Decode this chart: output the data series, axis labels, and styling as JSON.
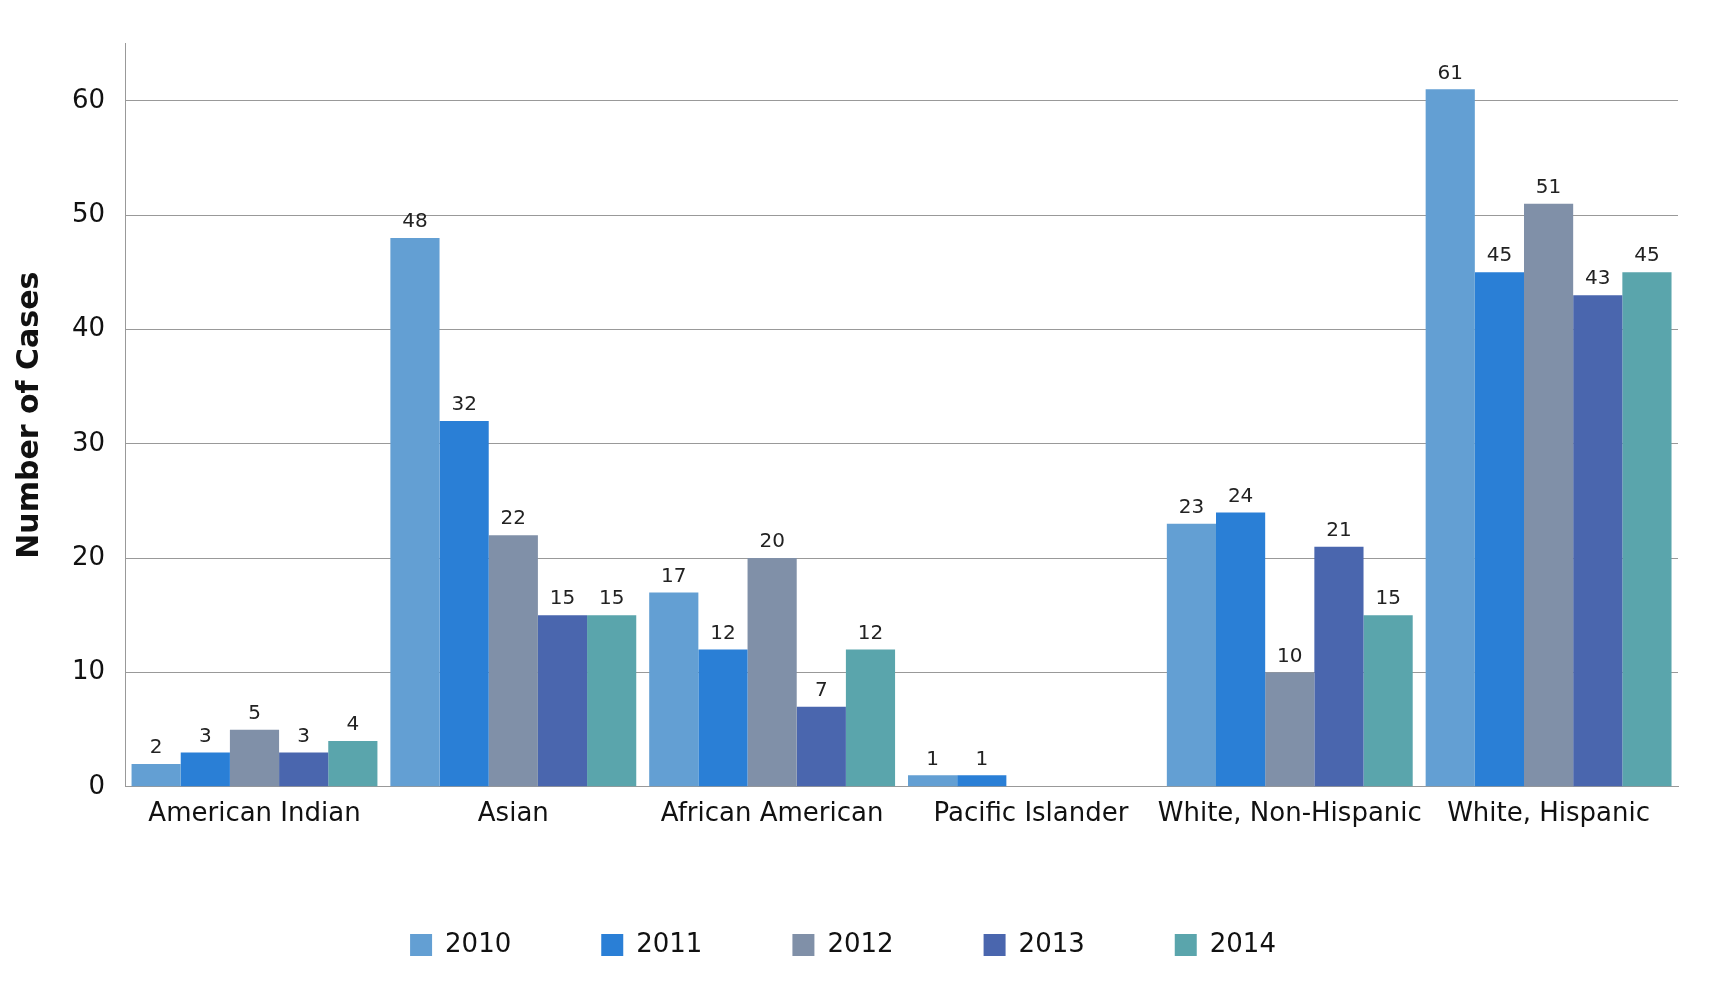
{
  "chart_data": {
    "type": "bar",
    "ylabel": "Number of Cases",
    "categories": [
      "American Indian",
      "Asian",
      "African American",
      "Pacific Islander",
      "White, Non-Hispanic",
      "White, Hispanic"
    ],
    "series": [
      {
        "name": "2010",
        "color": "#639fd3",
        "values": [
          2,
          48,
          17,
          1,
          23,
          61
        ],
        "value_labels": [
          "2",
          "48",
          "17",
          "1",
          "23",
          "61"
        ]
      },
      {
        "name": "2011",
        "color": "#2a7fd6",
        "values": [
          3,
          32,
          12,
          1,
          24,
          45
        ],
        "value_labels": [
          "3",
          "32",
          "12",
          "1",
          "24",
          "45"
        ]
      },
      {
        "name": "2012",
        "color": "#8090a8",
        "values": [
          5,
          22,
          20,
          0,
          10,
          51
        ],
        "value_labels": [
          "5",
          "22",
          "20",
          null,
          "10",
          "51"
        ]
      },
      {
        "name": "2013",
        "color": "#4a66ae",
        "values": [
          3,
          15,
          7,
          0,
          21,
          43
        ],
        "value_labels": [
          "3",
          "15",
          "7",
          null,
          "21",
          "43"
        ]
      },
      {
        "name": "2014",
        "color": "#5aa5ac",
        "values": [
          4,
          15,
          12,
          0,
          15,
          45
        ],
        "value_labels": [
          "4",
          "15",
          "12",
          null,
          "15",
          "45"
        ]
      }
    ],
    "ylim": [
      0,
      65
    ],
    "yticks": [
      0,
      10,
      20,
      30,
      40,
      50,
      60
    ],
    "grid": "y",
    "legend": "bottom"
  }
}
